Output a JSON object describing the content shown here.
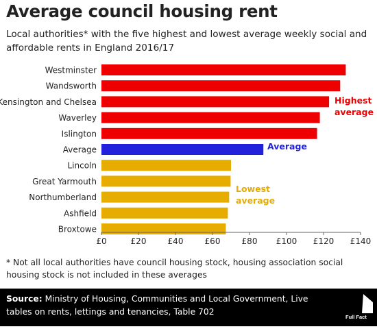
{
  "title": "Average council housing rent",
  "subtitle": "Local authorities* with the five highest and lowest average weekly social and affordable rents in England 2016/17",
  "footnote": "* Not all local authorities have council housing stock, housing association social housing stock is not included in these averages",
  "source": {
    "label": "Source:",
    "text": " Ministry of Housing, Communities and Local Government, Live tables on rents, lettings and tenancies, Table 702"
  },
  "logo": {
    "text": "Full Fact",
    "icon": "full-fact-logo"
  },
  "colors": {
    "highest": "#ee0000",
    "average": "#2222dd",
    "lowest": "#e6ac00",
    "axis": "#666666",
    "text": "#222222"
  },
  "chart_data": {
    "type": "bar",
    "orientation": "horizontal",
    "categories": [
      "Westminster",
      "Wandsworth",
      "Kensington and Chelsea",
      "Waverley",
      "Islington",
      "Average",
      "Lincoln",
      "Great Yarmouth",
      "Northumberland",
      "Ashfield",
      "Broxtowe"
    ],
    "values": [
      132,
      129,
      123,
      118,
      116.5,
      87.5,
      70,
      69.8,
      69,
      68.3,
      67.2
    ],
    "groups": [
      "highest",
      "highest",
      "highest",
      "highest",
      "highest",
      "average",
      "lowest",
      "lowest",
      "lowest",
      "lowest",
      "lowest"
    ],
    "xlim": [
      0,
      140
    ],
    "xticks": [
      0,
      20,
      40,
      60,
      80,
      100,
      120,
      140
    ],
    "xtick_labels": [
      "£0",
      "£20",
      "£40",
      "£60",
      "£80",
      "£100",
      "£120",
      "£140"
    ],
    "xlabel": "",
    "ylabel": "",
    "grid": false,
    "annotations": [
      {
        "lines": [
          "Highest",
          "average"
        ],
        "group": "highest"
      },
      {
        "lines": [
          "Average"
        ],
        "group": "average"
      },
      {
        "lines": [
          "Lowest",
          "average"
        ],
        "group": "lowest"
      }
    ]
  }
}
